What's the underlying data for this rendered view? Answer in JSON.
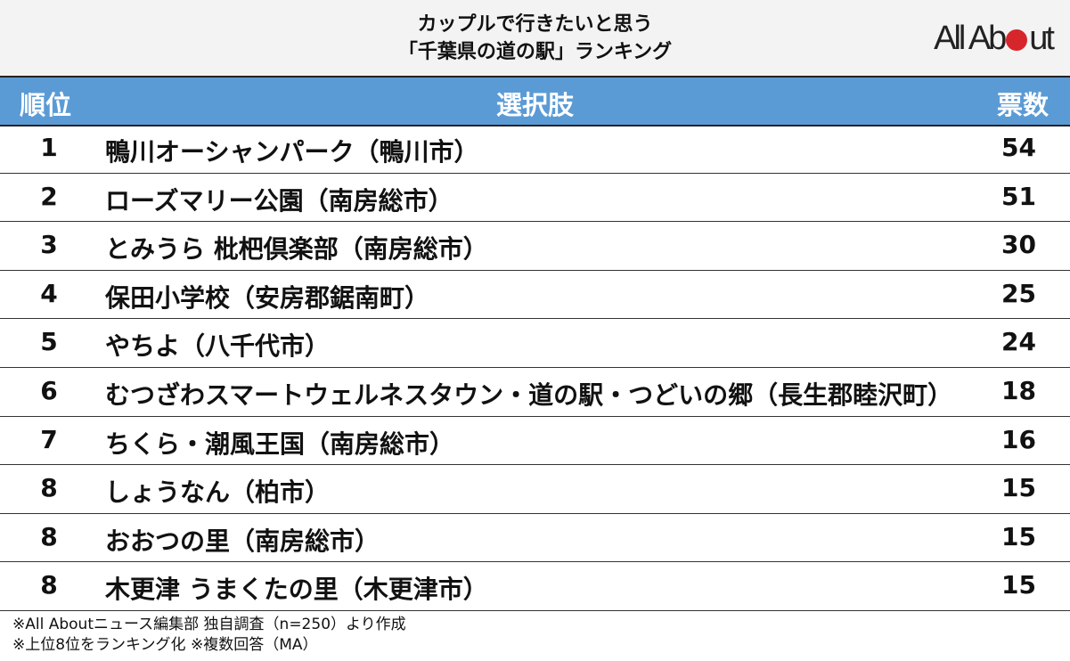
{
  "title": {
    "line1": "カップルで行きたいと思う",
    "line2": "「千葉県の道の駅」ランキング"
  },
  "logo": {
    "text": "All About",
    "accent": "#d6262b"
  },
  "colors": {
    "header_bg": "#5b9bd5",
    "title_bg": "#f3f3f3"
  },
  "chart_data": {
    "type": "table",
    "columns": [
      "順位",
      "選択肢",
      "票数"
    ],
    "rows": [
      {
        "rank": "1",
        "name": "鴨川オーシャンパーク（鴨川市）",
        "votes": "54"
      },
      {
        "rank": "2",
        "name": "ローズマリー公園（南房総市）",
        "votes": "51"
      },
      {
        "rank": "3",
        "name": "とみうら 枇杷倶楽部（南房総市）",
        "votes": "30"
      },
      {
        "rank": "4",
        "name": "保田小学校（安房郡鋸南町）",
        "votes": "25"
      },
      {
        "rank": "5",
        "name": "やちよ（八千代市）",
        "votes": "24"
      },
      {
        "rank": "6",
        "name": "むつざわスマートウェルネスタウン・道の駅・つどいの郷（長生郡睦沢町）",
        "votes": "18"
      },
      {
        "rank": "7",
        "name": "ちくら・潮風王国（南房総市）",
        "votes": "16"
      },
      {
        "rank": "8",
        "name": "しょうなん（柏市）",
        "votes": "15"
      },
      {
        "rank": "8",
        "name": "おおつの里（南房総市）",
        "votes": "15"
      },
      {
        "rank": "8",
        "name": "木更津 うまくたの里（木更津市）",
        "votes": "15"
      }
    ]
  },
  "footer": {
    "line1": "※All Aboutニュース編集部 独自調査（n=250）より作成",
    "line2": "※上位8位をランキング化 ※複数回答（MA）"
  }
}
